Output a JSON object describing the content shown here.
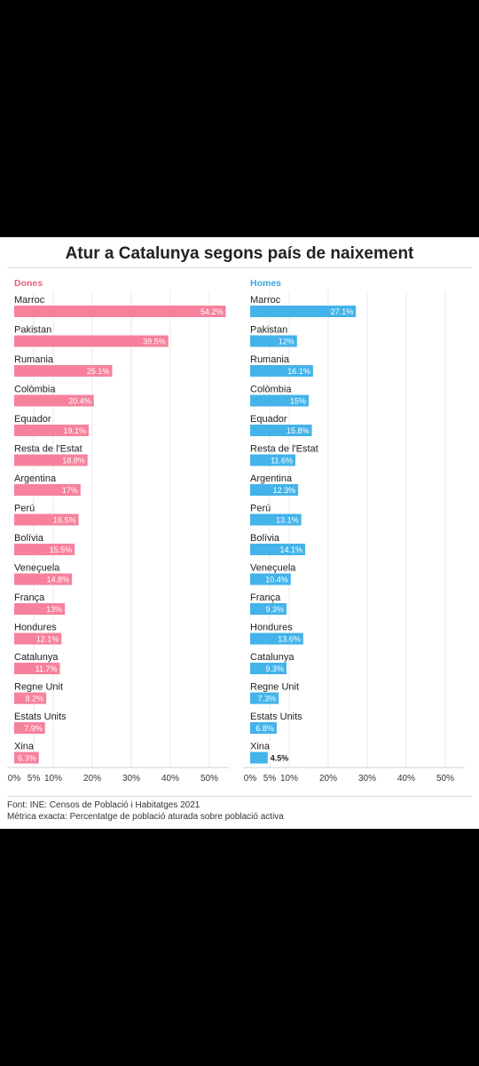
{
  "title": "Atur a Catalunya segons país de naixement",
  "source": "Font: INE: Censos de Població i Habitatges 2021",
  "metric": "Mètrica exacta: Percentatge de població aturada sobre població activa",
  "colors": {
    "dones": "#f7819c",
    "homes": "#43b3ea",
    "dones_label": "#e8637f",
    "homes_label": "#3aa6de"
  },
  "chart_data": [
    {
      "type": "bar",
      "orientation": "horizontal",
      "title": "Dones",
      "categories": [
        "Marroc",
        "Pakistan",
        "Rumania",
        "Colòmbia",
        "Equador",
        "Resta de l'Estat",
        "Argentina",
        "Perú",
        "Bolívia",
        "Veneçuela",
        "França",
        "Hondures",
        "Catalunya",
        "Regne Unit",
        "Estats Units",
        "Xina"
      ],
      "values": [
        54.2,
        39.5,
        25.1,
        20.4,
        19.1,
        18.8,
        17,
        16.5,
        15.5,
        14.8,
        13,
        12.1,
        11.7,
        8.2,
        7.9,
        6.3
      ],
      "labels": [
        "54.2%",
        "39.5%",
        "25.1%",
        "20.4%",
        "19.1%",
        "18.8%",
        "17%",
        "16.5%",
        "15.5%",
        "14.8%",
        "13%",
        "12.1%",
        "11.7%",
        "8.2%",
        "7.9%",
        "6.3%"
      ],
      "xticks": [
        0,
        5,
        10,
        20,
        30,
        40,
        50
      ],
      "xtick_labels": [
        "0%",
        "5%",
        "10%",
        "20%",
        "30%",
        "40%",
        "50%"
      ],
      "xlim": [
        0,
        55
      ],
      "grid": true
    },
    {
      "type": "bar",
      "orientation": "horizontal",
      "title": "Homes",
      "categories": [
        "Marroc",
        "Pakistan",
        "Rumania",
        "Colòmbia",
        "Equador",
        "Resta de l'Estat",
        "Argentina",
        "Perú",
        "Bolívia",
        "Veneçuela",
        "França",
        "Hondures",
        "Catalunya",
        "Regne Unit",
        "Estats Units",
        "Xina"
      ],
      "values": [
        27.1,
        12,
        16.1,
        15,
        15.8,
        11.6,
        12.3,
        13.1,
        14.1,
        10.4,
        9.3,
        13.6,
        9.3,
        7.3,
        6.8,
        4.5
      ],
      "labels": [
        "27.1%",
        "12%",
        "16.1%",
        "15%",
        "15.8%",
        "11.6%",
        "12.3%",
        "13.1%",
        "14.1%",
        "10.4%",
        "9.3%",
        "13.6%",
        "9.3%",
        "7.3%",
        "6.8%",
        "4.5%"
      ],
      "xticks": [
        0,
        5,
        10,
        20,
        30,
        40,
        50
      ],
      "xtick_labels": [
        "0%",
        "5%",
        "10%",
        "20%",
        "30%",
        "40%",
        "50%"
      ],
      "xlim": [
        0,
        55
      ],
      "grid": true
    }
  ]
}
